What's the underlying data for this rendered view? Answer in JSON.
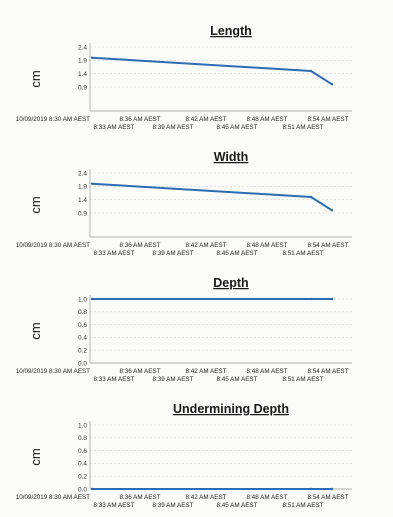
{
  "chart_data": [
    {
      "type": "line",
      "title": "Length",
      "ylabel": "cm",
      "ylim": [
        0.0,
        2.4
      ],
      "yticks": [
        "0.9",
        "1.4",
        "1.9",
        "2.4"
      ],
      "x": [
        "8:33 AM AEST",
        "8:51 AM AEST",
        "8:54 AM AEST"
      ],
      "values": [
        2.0,
        1.5,
        1.0
      ],
      "xtick_labels_top": [
        "10/09/2019 8:30 AM AEST",
        "8:36 AM AEST",
        "8:42 AM AEST",
        "8:48 AM AEST",
        "8:54 AM AEST"
      ],
      "xtick_labels_bottom": [
        "8:33 AM AEST",
        "8:39 AM AEST",
        "8:45 AM AEST",
        "8:51 AM AEST"
      ],
      "grid": true
    },
    {
      "type": "line",
      "title": "Width",
      "ylabel": "cm",
      "ylim": [
        0.0,
        2.4
      ],
      "yticks": [
        "0.9",
        "1.4",
        "1.9",
        "2.4"
      ],
      "x": [
        "8:33 AM AEST",
        "8:51 AM AEST",
        "8:54 AM AEST"
      ],
      "values": [
        2.0,
        1.5,
        1.0
      ],
      "xtick_labels_top": [
        "10/09/2019 8:30 AM AEST",
        "8:36 AM AEST",
        "8:42 AM AEST",
        "8:48 AM AEST",
        "8:54 AM AEST"
      ],
      "xtick_labels_bottom": [
        "8:33 AM AEST",
        "8:39 AM AEST",
        "8:45 AM AEST",
        "8:51 AM AEST"
      ],
      "grid": true
    },
    {
      "type": "line",
      "title": "Depth",
      "ylabel": "cm",
      "ylim": [
        0.0,
        1.0
      ],
      "yticks": [
        "0.0",
        "0.2",
        "0.4",
        "0.6",
        "0.8",
        "1.0"
      ],
      "x": [
        "8:33 AM AEST",
        "8:51 AM AEST",
        "8:54 AM AEST"
      ],
      "values": [
        1.0,
        1.0,
        1.0
      ],
      "xtick_labels_top": [
        "10/09/2019 8:30 AM AEST",
        "8:36 AM AEST",
        "8:42 AM AEST",
        "8:48 AM AEST",
        "8:54 AM AEST"
      ],
      "xtick_labels_bottom": [
        "8:33 AM AEST",
        "8:39 AM AEST",
        "8:45 AM AEST",
        "8:51 AM AEST"
      ],
      "grid": true
    },
    {
      "type": "line",
      "title": "Undermining Depth",
      "ylabel": "cm",
      "ylim": [
        0.0,
        1.0
      ],
      "yticks": [
        "0.0",
        "0.2",
        "0.4",
        "0.6",
        "0.8",
        "1.0"
      ],
      "x": [
        "8:33 AM AEST",
        "8:51 AM AEST",
        "8:54 AM AEST"
      ],
      "values": [
        0.0,
        0.0,
        0.0
      ],
      "xtick_labels_top": [
        "10/09/2019 8:30 AM AEST",
        "8:36 AM AEST",
        "8:42 AM AEST",
        "8:48 AM AEST",
        "8:54 AM AEST"
      ],
      "xtick_labels_bottom": [
        "8:33 AM AEST",
        "8:39 AM AEST",
        "8:45 AM AEST",
        "8:51 AM AEST"
      ],
      "grid": true
    }
  ],
  "colors": {
    "series": "#2d6bb3",
    "grid": "#d4d4d4"
  }
}
